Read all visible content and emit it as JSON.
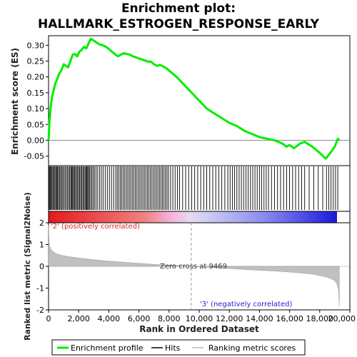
{
  "chart_data": {
    "type": "line",
    "title_line1": "Enrichment plot:",
    "title_line2": "HALLMARK_ESTROGEN_RESPONSE_EARLY",
    "ylabel_top": "Enrichment score (ES)",
    "ylabel_bottom": "Ranked list metric (Signal2Noise)",
    "xlabel": "Rank in Ordered Dataset",
    "xlim": [
      0,
      20000
    ],
    "x_ticks": [
      0,
      2000,
      4000,
      6000,
      8000,
      10000,
      12000,
      14000,
      16000,
      18000,
      20000
    ],
    "x_tick_labels": [
      "0",
      "2,000",
      "4,000",
      "6,000",
      "8,000",
      "10,000",
      "12,000",
      "14,000",
      "16,000",
      "18,000",
      "20,000"
    ],
    "es_ylim": [
      -0.08,
      0.33
    ],
    "es_ticks": [
      -0.05,
      0.0,
      0.05,
      0.1,
      0.15,
      0.2,
      0.25,
      0.3
    ],
    "es_tick_labels": [
      "-0.05",
      "0.00",
      "0.05",
      "0.10",
      "0.15",
      "0.20",
      "0.25",
      "0.30"
    ],
    "metric_ylim": [
      -2,
      2
    ],
    "metric_ticks": [
      -2,
      -1,
      0,
      1,
      2
    ],
    "metric_tick_labels": [
      "-2",
      "-1",
      "0",
      "1",
      "2"
    ],
    "zero_cross_rank": 9469,
    "zero_cross_label": "Zero cross at 9469",
    "pos_label": "'2' (positively correlated)",
    "neg_label": "'3' (negatively correlated)",
    "n_genes": 19300,
    "enrichment_profile": {
      "name": "Enrichment profile",
      "color": "#00ee00",
      "x": [
        0,
        60,
        150,
        250,
        350,
        450,
        550,
        700,
        850,
        1000,
        1150,
        1300,
        1450,
        1600,
        1750,
        1900,
        2050,
        2200,
        2350,
        2500,
        2650,
        2800,
        3000,
        3200,
        3400,
        3600,
        3800,
        4000,
        4200,
        4400,
        4600,
        4800,
        5000,
        5200,
        5400,
        5600,
        5800,
        6000,
        6200,
        6400,
        6600,
        6800,
        7000,
        7200,
        7400,
        7600,
        7800,
        8000,
        8500,
        9000,
        9500,
        10000,
        10500,
        11000,
        11500,
        12000,
        12500,
        13000,
        13500,
        14000,
        14500,
        15000,
        15500,
        15800,
        16000,
        16300,
        16700,
        17000,
        17500,
        18000,
        18400,
        18700,
        19000,
        19200,
        19300
      ],
      "y": [
        0.0,
        0.06,
        0.11,
        0.14,
        0.16,
        0.18,
        0.19,
        0.21,
        0.22,
        0.24,
        0.235,
        0.23,
        0.25,
        0.27,
        0.272,
        0.265,
        0.28,
        0.285,
        0.295,
        0.29,
        0.305,
        0.32,
        0.315,
        0.308,
        0.302,
        0.3,
        0.295,
        0.288,
        0.28,
        0.272,
        0.265,
        0.27,
        0.275,
        0.272,
        0.27,
        0.265,
        0.262,
        0.258,
        0.255,
        0.252,
        0.248,
        0.248,
        0.24,
        0.235,
        0.238,
        0.233,
        0.228,
        0.22,
        0.2,
        0.175,
        0.15,
        0.125,
        0.1,
        0.085,
        0.07,
        0.055,
        0.045,
        0.03,
        0.02,
        0.01,
        0.005,
        0.0,
        -0.01,
        -0.02,
        -0.015,
        -0.025,
        -0.01,
        -0.005,
        -0.02,
        -0.04,
        -0.058,
        -0.04,
        -0.02,
        0.005,
        0.0
      ]
    },
    "hits_label": "Hits",
    "hits": [
      20,
      60,
      110,
      170,
      230,
      290,
      350,
      420,
      480,
      540,
      600,
      660,
      730,
      800,
      870,
      940,
      1020,
      1100,
      1180,
      1260,
      1340,
      1410,
      1480,
      1540,
      1600,
      1660,
      1720,
      1790,
      1860,
      1930,
      2000,
      2070,
      2140,
      2210,
      2280,
      2350,
      2420,
      2480,
      2540,
      2600,
      2650,
      2720,
      2800,
      2880,
      2960,
      3050,
      3150,
      3260,
      3380,
      3500,
      3620,
      3760,
      3900,
      4040,
      4180,
      4320,
      4460,
      4560,
      4660,
      4760,
      4860,
      4960,
      5060,
      5160,
      5260,
      5360,
      5460,
      5560,
      5660,
      5760,
      5860,
      5960,
      6060,
      6160,
      6260,
      6360,
      6460,
      6560,
      6660,
      6760,
      6860,
      6960,
      7060,
      7160,
      7260,
      7360,
      7460,
      7560,
      7660,
      7760,
      7860,
      7960,
      8100,
      8250,
      8400,
      8550,
      8700,
      8900,
      9100,
      9300,
      9500,
      9700,
      9900,
      10100,
      10300,
      10500,
      10700,
      10900,
      11100,
      11300,
      11500,
      11700,
      11900,
      12050,
      12200,
      12350,
      12500,
      12650,
      12800,
      12950,
      13100,
      13250,
      13400,
      13550,
      13700,
      13850,
      14000,
      14150,
      14300,
      14450,
      14600,
      14800,
      15000,
      15200,
      15400,
      15600,
      15800,
      16000,
      16200,
      16400,
      16600,
      16800,
      17000,
      17300,
      17600,
      17900,
      18200,
      18450,
      18600,
      18750,
      18900,
      19050,
      19200
    ],
    "metric_legend_label": "Ranking metric scores",
    "metric_curve": {
      "x": [
        0,
        30,
        80,
        150,
        250,
        400,
        600,
        900,
        1300,
        1800,
        2500,
        3500,
        4500,
        5500,
        6500,
        7500,
        8500,
        9469,
        10500,
        11500,
        12500,
        13500,
        14500,
        15500,
        16500,
        17500,
        18000,
        18500,
        18800,
        19000,
        19150,
        19250,
        19300
      ],
      "y": [
        1.9,
        1.2,
        0.9,
        0.78,
        0.7,
        0.62,
        0.55,
        0.5,
        0.45,
        0.4,
        0.34,
        0.27,
        0.21,
        0.16,
        0.11,
        0.07,
        0.035,
        0.0,
        -0.04,
        -0.08,
        -0.12,
        -0.16,
        -0.2,
        -0.24,
        -0.29,
        -0.36,
        -0.42,
        -0.5,
        -0.58,
        -0.66,
        -0.8,
        -1.1,
        -1.85
      ]
    }
  }
}
